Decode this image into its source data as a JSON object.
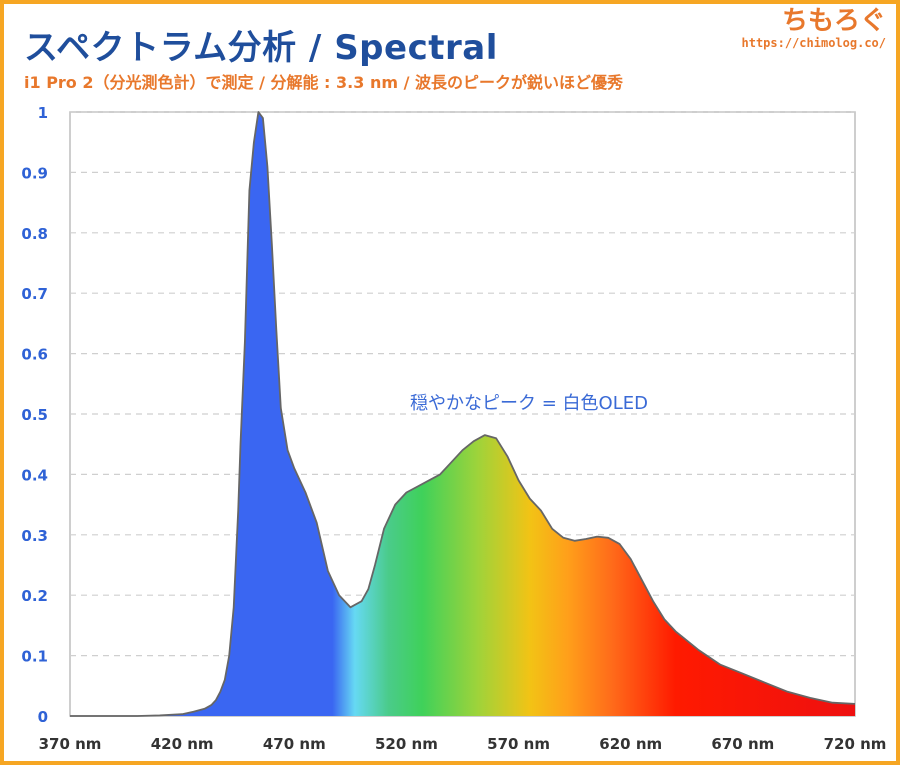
{
  "header": {
    "title": "スペクトラム分析 / Spectral",
    "subtitle": "i1 Pro 2（分光測色計）で測定 / 分解能 : 3.3 nm / 波長のピークが鋭いほど優秀"
  },
  "brand": {
    "name": "ちもろぐ",
    "url": "https://chimolog.co/"
  },
  "colors": {
    "border": "#f6a623",
    "title": "#1f4e9c",
    "accent": "#e8782c",
    "tick_y": "#2f62d6",
    "tick_x": "#333333",
    "annotation": "#3a6ad6"
  },
  "chart_data": {
    "type": "area",
    "xlabel": "",
    "ylabel": "",
    "xlim": [
      370,
      720
    ],
    "ylim": [
      0,
      1
    ],
    "grid": "horizontal dashed",
    "y_ticks": [
      "0",
      "0.1",
      "0.2",
      "0.3",
      "0.4",
      "0.5",
      "0.6",
      "0.7",
      "0.8",
      "0.9",
      "1"
    ],
    "x_ticks": [
      "370 nm",
      "420 nm",
      "470 nm",
      "520 nm",
      "570 nm",
      "620 nm",
      "670 nm",
      "720 nm"
    ],
    "annotation": "穏やかなピーク = 白色OLED",
    "x": [
      370,
      400,
      410,
      420,
      425,
      430,
      433,
      435,
      437,
      439,
      441,
      443,
      445,
      446,
      448,
      450,
      452,
      454,
      456,
      458,
      460,
      462,
      464,
      467,
      470,
      475,
      480,
      485,
      490,
      495,
      500,
      503,
      506,
      510,
      515,
      520,
      525,
      530,
      535,
      540,
      545,
      550,
      555,
      560,
      565,
      570,
      575,
      580,
      585,
      590,
      595,
      600,
      605,
      610,
      615,
      620,
      625,
      630,
      635,
      640,
      650,
      660,
      670,
      680,
      690,
      700,
      710,
      720
    ],
    "values": [
      0,
      0,
      0.001,
      0.003,
      0.007,
      0.012,
      0.018,
      0.026,
      0.04,
      0.06,
      0.1,
      0.18,
      0.34,
      0.45,
      0.62,
      0.87,
      0.95,
      1.0,
      0.99,
      0.91,
      0.78,
      0.64,
      0.51,
      0.44,
      0.41,
      0.37,
      0.32,
      0.24,
      0.2,
      0.18,
      0.19,
      0.21,
      0.25,
      0.31,
      0.35,
      0.37,
      0.38,
      0.39,
      0.4,
      0.42,
      0.44,
      0.455,
      0.465,
      0.46,
      0.43,
      0.39,
      0.36,
      0.34,
      0.31,
      0.295,
      0.29,
      0.293,
      0.297,
      0.295,
      0.285,
      0.26,
      0.225,
      0.19,
      0.16,
      0.14,
      0.11,
      0.085,
      0.07,
      0.055,
      0.04,
      0.03,
      0.022,
      0.02
    ],
    "spectrum_colors": [
      {
        "nm": 370,
        "color": "#3a66f2"
      },
      {
        "nm": 487,
        "color": "#3a66f2"
      },
      {
        "nm": 497,
        "color": "#66d9f3"
      },
      {
        "nm": 512,
        "color": "#4acb8a"
      },
      {
        "nm": 527,
        "color": "#3fd15a"
      },
      {
        "nm": 552,
        "color": "#9fd33a"
      },
      {
        "nm": 575,
        "color": "#f2c315"
      },
      {
        "nm": 592,
        "color": "#ff9f1a"
      },
      {
        "nm": 612,
        "color": "#ff6a1a"
      },
      {
        "nm": 640,
        "color": "#ff1a00"
      },
      {
        "nm": 720,
        "color": "#ee1010"
      }
    ]
  }
}
